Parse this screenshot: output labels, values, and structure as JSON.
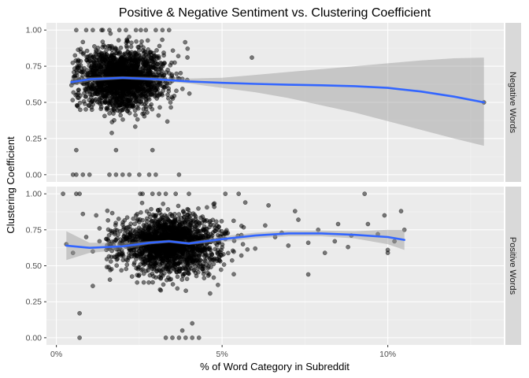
{
  "chart_data": {
    "type": "scatter",
    "title": "Positive & Negative Sentiment vs. Clustering Coefficient",
    "xlabel": "% of Word Category in Subreddit",
    "ylabel": "Clustering Coefficient",
    "x_tick_labels": [
      "0%",
      "5%",
      "10%"
    ],
    "x_ticks": [
      0,
      5,
      10
    ],
    "y_tick_labels": [
      "0.00",
      "0.25",
      "0.50",
      "0.75",
      "1.00"
    ],
    "y_ticks": [
      0,
      0.25,
      0.5,
      0.75,
      1.0
    ],
    "xlim": [
      -0.3,
      13.5
    ],
    "ylim": [
      -0.05,
      1.05
    ],
    "grid": true,
    "point_color": "#000000",
    "trend_color": "#3366ff",
    "band_color": "#999999",
    "panel_bg": "#ebebeb",
    "strip_bg": "#d9d9d9",
    "facets": [
      {
        "label": "Negative Words",
        "trend": {
          "x": [
            0.45,
            1.0,
            2.0,
            3.0,
            4.0,
            5.0,
            6.0,
            7.0,
            8.0,
            9.0,
            10.0,
            11.0,
            12.0,
            12.9
          ],
          "y": [
            0.64,
            0.66,
            0.67,
            0.66,
            0.645,
            0.635,
            0.628,
            0.622,
            0.618,
            0.612,
            0.6,
            0.575,
            0.54,
            0.5
          ],
          "lower": [
            0.61,
            0.645,
            0.66,
            0.65,
            0.63,
            0.6,
            0.57,
            0.53,
            0.48,
            0.43,
            0.37,
            0.31,
            0.25,
            0.2
          ],
          "upper": [
            0.67,
            0.675,
            0.68,
            0.675,
            0.665,
            0.67,
            0.69,
            0.71,
            0.73,
            0.75,
            0.77,
            0.79,
            0.805,
            0.81
          ]
        },
        "cloud": {
          "cx": 2.0,
          "cy": 0.67,
          "sx": 0.65,
          "sy": 0.105,
          "n": 1800,
          "x_min": 0.45,
          "x_max": 4.2
        },
        "extra_points": [
          [
            0.5,
            0.0
          ],
          [
            0.6,
            0.0
          ],
          [
            0.8,
            0.0
          ],
          [
            1.0,
            0.0
          ],
          [
            1.6,
            0.0
          ],
          [
            1.8,
            0.0
          ],
          [
            2.0,
            0.0
          ],
          [
            2.2,
            0.0
          ],
          [
            2.5,
            0.0
          ],
          [
            2.8,
            0.0
          ],
          [
            3.0,
            0.0
          ],
          [
            3.7,
            0.0
          ],
          [
            0.6,
            0.17
          ],
          [
            1.8,
            0.17
          ],
          [
            2.9,
            0.17
          ],
          [
            0.6,
            1.0
          ],
          [
            0.9,
            1.0
          ],
          [
            1.1,
            1.0
          ],
          [
            1.4,
            1.0
          ],
          [
            1.6,
            1.0
          ],
          [
            1.9,
            1.0
          ],
          [
            2.1,
            1.0
          ],
          [
            2.4,
            1.0
          ],
          [
            2.7,
            1.0
          ],
          [
            3.0,
            1.0
          ],
          [
            3.2,
            1.0
          ],
          [
            3.4,
            1.0
          ],
          [
            5.9,
            0.81
          ],
          [
            12.9,
            0.5
          ]
        ]
      },
      {
        "label": "Positive Words",
        "trend": {
          "x": [
            0.3,
            1.0,
            2.0,
            2.8,
            3.4,
            4.0,
            5.0,
            6.0,
            7.0,
            8.0,
            9.0,
            10.0,
            10.5
          ],
          "y": [
            0.64,
            0.625,
            0.635,
            0.66,
            0.67,
            0.655,
            0.685,
            0.71,
            0.725,
            0.725,
            0.715,
            0.7,
            0.68
          ],
          "lower": [
            0.54,
            0.59,
            0.61,
            0.648,
            0.66,
            0.645,
            0.665,
            0.69,
            0.705,
            0.705,
            0.69,
            0.65,
            0.61
          ],
          "upper": [
            0.74,
            0.66,
            0.66,
            0.672,
            0.68,
            0.665,
            0.705,
            0.73,
            0.745,
            0.745,
            0.74,
            0.75,
            0.75
          ]
        },
        "cloud": {
          "cx": 3.4,
          "cy": 0.65,
          "sx": 0.75,
          "sy": 0.1,
          "n": 1800,
          "x_min": 1.5,
          "x_max": 5.8
        },
        "extra_points": [
          [
            0.2,
            1.0
          ],
          [
            0.6,
            1.0
          ],
          [
            0.7,
            1.0
          ],
          [
            2.6,
            1.0
          ],
          [
            2.9,
            1.0
          ],
          [
            3.1,
            1.0
          ],
          [
            3.3,
            1.0
          ],
          [
            3.6,
            1.0
          ],
          [
            4.0,
            1.0
          ],
          [
            5.1,
            1.0
          ],
          [
            5.5,
            1.0
          ],
          [
            9.3,
            1.0
          ],
          [
            0.7,
            0.17
          ],
          [
            1.1,
            0.36
          ],
          [
            7.6,
            0.44
          ],
          [
            0.7,
            0.0
          ],
          [
            3.3,
            0.0
          ],
          [
            3.5,
            0.0
          ],
          [
            3.7,
            0.0
          ],
          [
            3.9,
            0.0
          ],
          [
            4.1,
            0.0
          ],
          [
            4.3,
            0.0
          ],
          [
            4.1,
            0.1
          ],
          [
            3.8,
            0.05
          ],
          [
            0.5,
            0.59
          ],
          [
            0.3,
            0.65
          ],
          [
            0.9,
            0.7
          ],
          [
            1.3,
            0.67
          ],
          [
            1.6,
            0.63
          ],
          [
            1.1,
            0.6
          ],
          [
            2.0,
            0.58
          ],
          [
            1.3,
            0.76
          ],
          [
            0.8,
            0.86
          ],
          [
            1.2,
            0.85
          ],
          [
            6.0,
            0.62
          ],
          [
            6.3,
            0.78
          ],
          [
            6.6,
            0.7
          ],
          [
            7.0,
            0.64
          ],
          [
            7.3,
            0.82
          ],
          [
            7.9,
            0.75
          ],
          [
            8.4,
            0.67
          ],
          [
            8.5,
            0.79
          ],
          [
            8.9,
            0.71
          ],
          [
            9.4,
            0.79
          ],
          [
            9.9,
            0.85
          ],
          [
            10.0,
            0.59
          ],
          [
            10.2,
            0.67
          ],
          [
            10.5,
            0.75
          ],
          [
            10.4,
            0.88
          ],
          [
            8.1,
            0.59
          ],
          [
            7.2,
            0.88
          ],
          [
            6.4,
            0.92
          ],
          [
            5.7,
            0.94
          ],
          [
            8.8,
            0.63
          ],
          [
            9.7,
            0.72
          ],
          [
            10.0,
            0.61
          ],
          [
            6.8,
            0.73
          ],
          [
            7.6,
            0.66
          ]
        ]
      }
    ]
  }
}
